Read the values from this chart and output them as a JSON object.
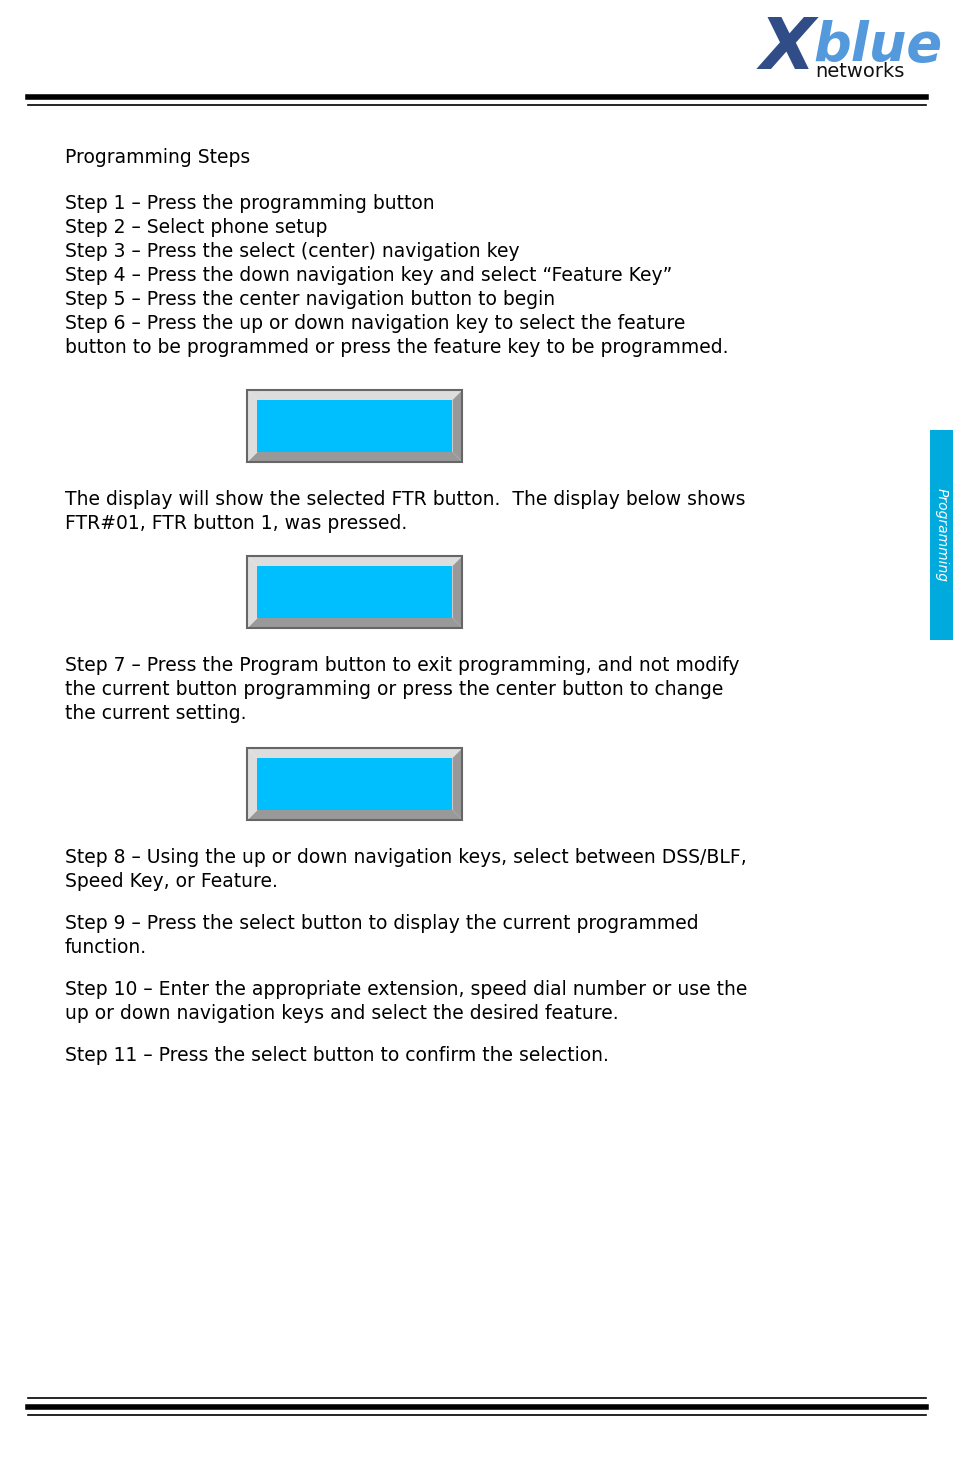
{
  "title": "Programming Steps",
  "steps_block1": [
    "Step 1 – Press the programming button",
    "Step 2 – Select phone setup",
    "Step 3 – Press the select (center) navigation key",
    "Step 4 – Press the down navigation key and select “Feature Key”",
    "Step 5 – Press the center navigation button to begin",
    "Step 6 – Press the up or down navigation key to select the feature",
    "button to be programmed or press the feature key to be programmed."
  ],
  "text_after_display1": "The display will show the selected FTR button.  The display below shows\nFTR#01, FTR button 1, was pressed.",
  "text_step7": "Step 7 – Press the Program button to exit programming, and not modify\nthe current button programming or press the center button to change\nthe current setting.",
  "text_step8": "Step 8 – Using the up or down navigation keys, select between DSS/BLF,\nSpeed Key, or Feature.",
  "text_step9": "Step 9 – Press the select button to display the current programmed\nfunction.",
  "text_step10": "Step 10 – Enter the appropriate extension, speed dial number or use the\nup or down navigation keys and select the desired feature.",
  "text_step11": "Step 11 – Press the select button to confirm the selection.",
  "sidebar_text": "Programming",
  "sidebar_color": "#00AADD",
  "display_fill_color": "#00BFFF",
  "display_border_light": "#DDDDDD",
  "display_border_dark": "#888888",
  "display_bevel_color": "#BBBBBB",
  "header_line_color": "#000000",
  "footer_line_color": "#000000",
  "bg_color": "#FFFFFF",
  "text_color": "#000000",
  "font_size": 13.5,
  "title_font_size": 13.5
}
